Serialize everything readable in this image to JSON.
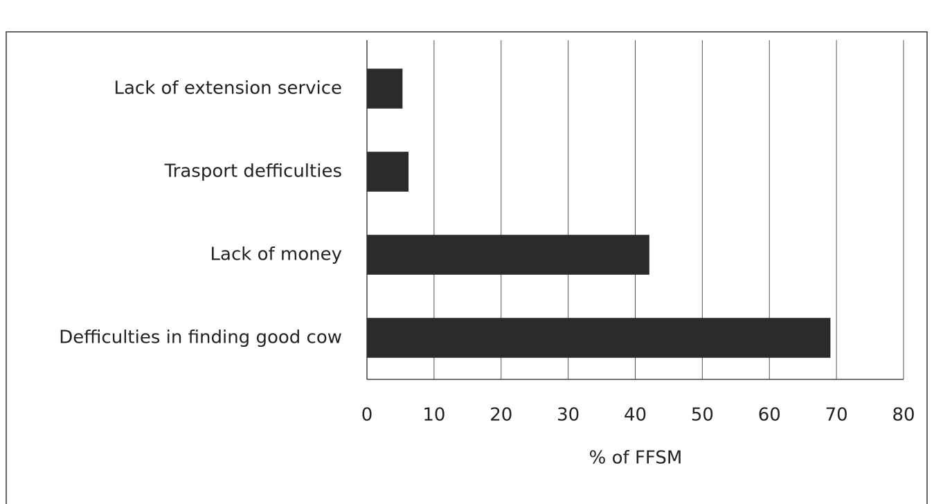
{
  "chart_data": {
    "type": "barh",
    "categories": [
      "Lack of extension service",
      "Trasport defficulties",
      "Lack of money",
      "Defficulties in finding good cow"
    ],
    "values": [
      5.3,
      6.2,
      42.1,
      69.1
    ],
    "color": "#2b2b2b",
    "xlabel": "% of FFSM",
    "xlim": [
      0,
      80
    ],
    "xticks": [
      0,
      10,
      20,
      30,
      40,
      50,
      60,
      70,
      80
    ],
    "grid": true
  }
}
